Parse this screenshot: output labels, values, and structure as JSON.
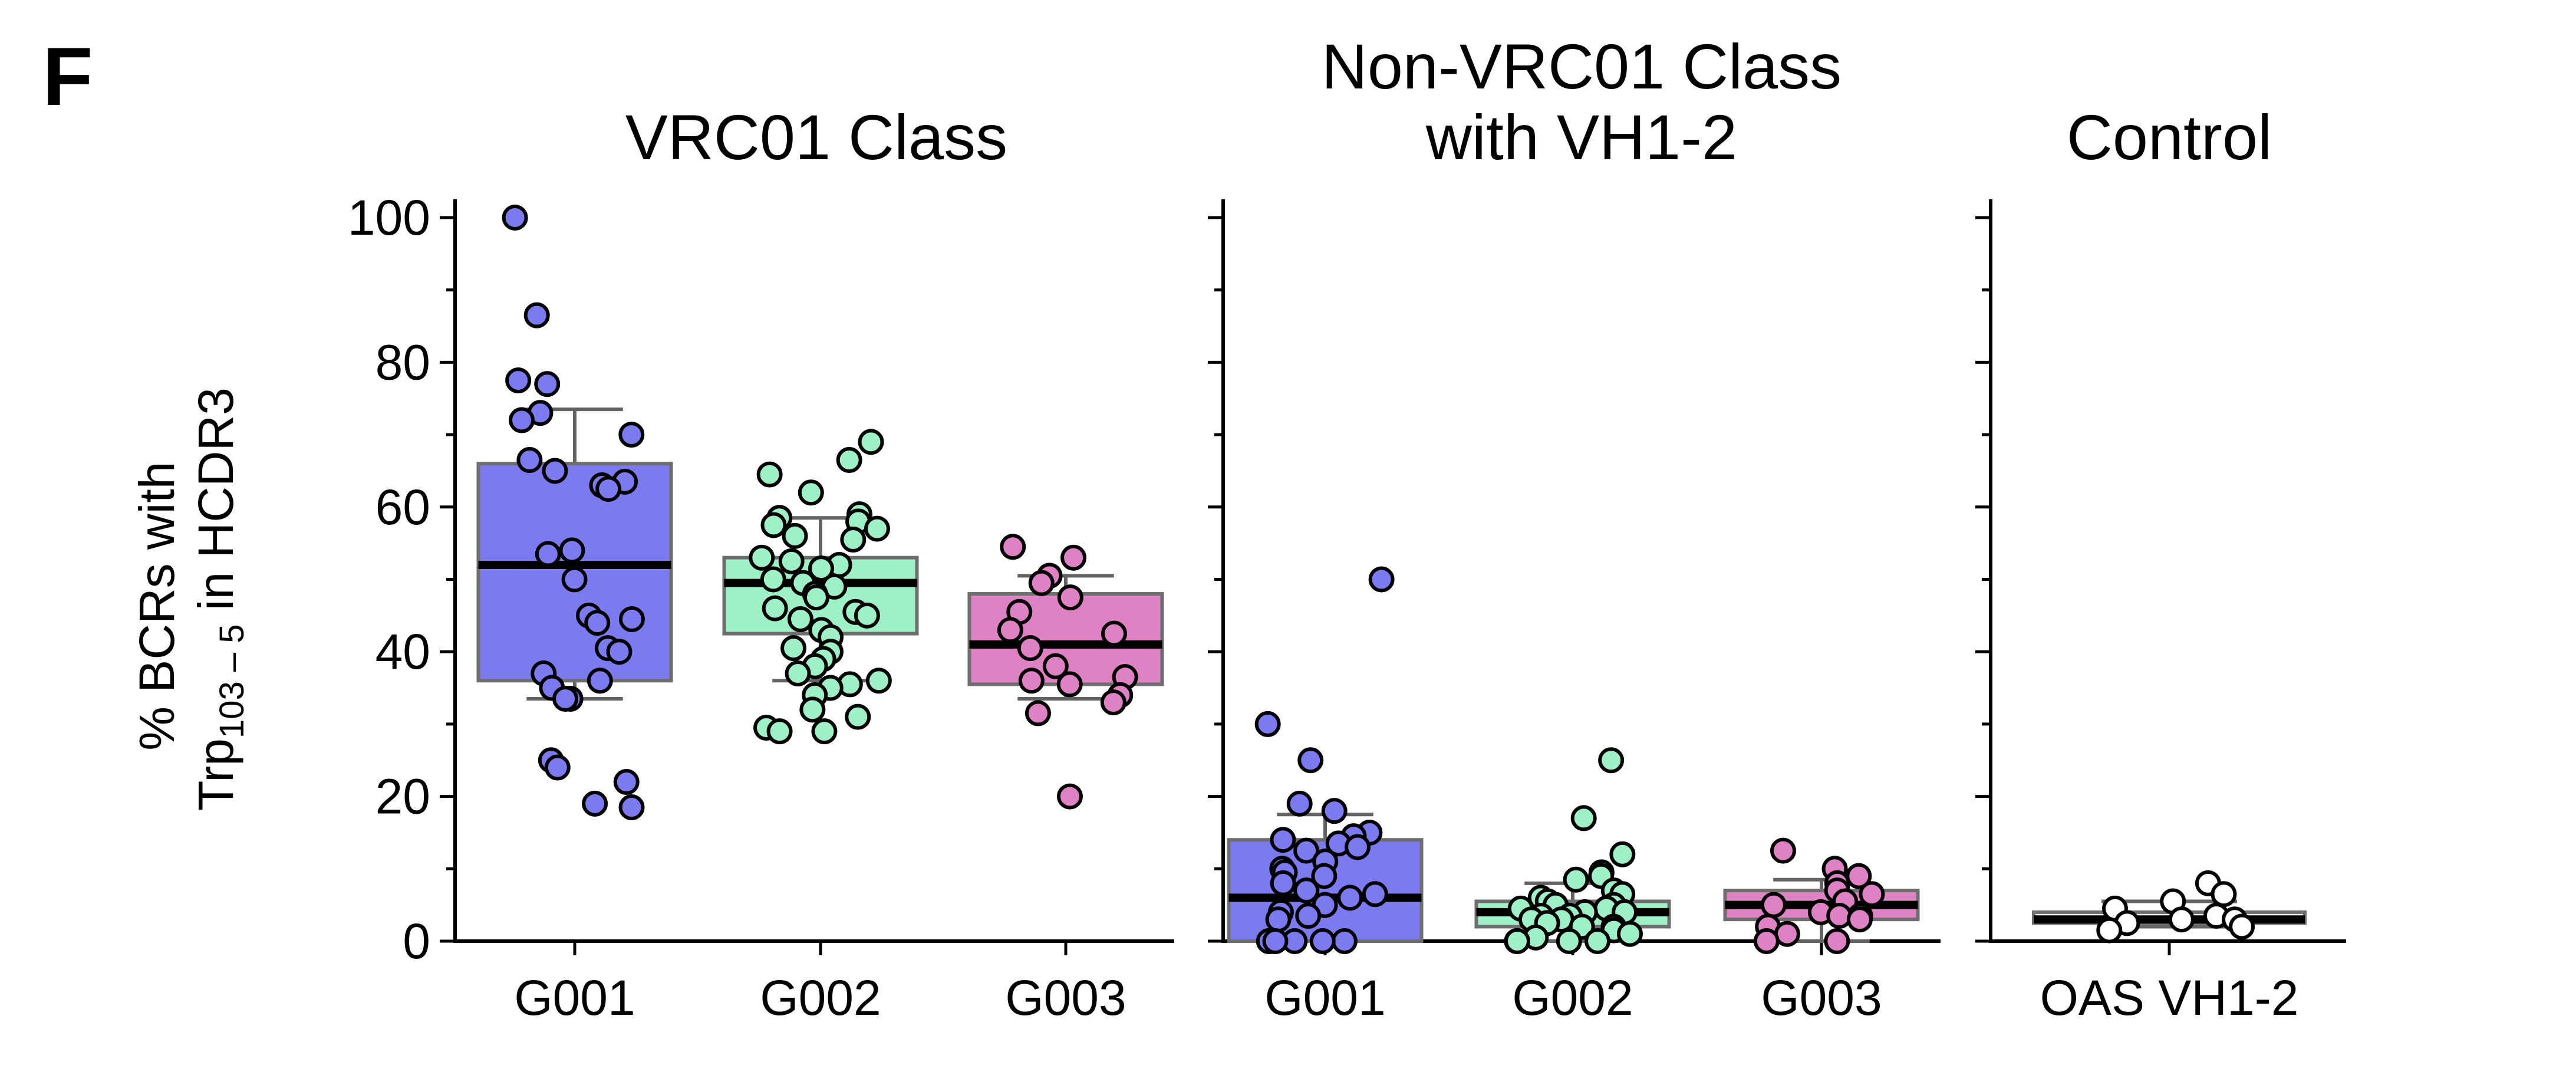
{
  "panel_label": "F",
  "y_label_line1": "% BCRs with",
  "y_label_line2_main": "Trp",
  "y_label_line2_sub": "103 – 5",
  "y_label_line2_rest": " in HCDR3",
  "chart_data": [
    {
      "type": "box",
      "title_lines": [
        "VRC01 Class"
      ],
      "categories": [
        "G001",
        "G002",
        "G003"
      ],
      "ylim": [
        0,
        100
      ],
      "yticks": [
        0,
        20,
        40,
        60,
        80,
        100
      ],
      "boxes": [
        {
          "category": "G001",
          "q1": 36,
          "median": 52,
          "q3": 66,
          "whisker_low": 33.5,
          "whisker_high": 73.5,
          "color": "#7b7bef",
          "points": [
            100,
            86.5,
            77.5,
            77,
            73,
            72,
            70,
            66.5,
            65,
            63.5,
            63,
            62.5,
            54,
            53.5,
            50,
            45,
            44.5,
            44,
            40.5,
            40,
            37,
            36,
            35,
            33.5,
            33.5,
            25,
            24,
            22,
            19,
            18.5
          ]
        },
        {
          "category": "G002",
          "q1": 42.5,
          "median": 49.5,
          "q3": 53,
          "whisker_low": 36,
          "whisker_high": 58.5,
          "color": "#9ef0c6",
          "points": [
            69,
            66.5,
            64.5,
            62,
            59,
            58.5,
            58,
            57.5,
            57,
            56,
            55.5,
            53,
            52.5,
            52,
            51.5,
            50,
            49.5,
            49,
            48,
            47.5,
            46,
            45.5,
            45,
            44.5,
            43,
            42,
            40.5,
            40,
            39,
            38,
            37,
            36,
            35.5,
            35,
            34,
            32,
            31,
            29.5,
            29,
            29
          ]
        },
        {
          "category": "G003",
          "q1": 35.5,
          "median": 41,
          "q3": 48,
          "whisker_low": 33.5,
          "whisker_high": 50.5,
          "color": "#de82c4",
          "points": [
            54.5,
            53,
            50.5,
            49.5,
            47.5,
            45.5,
            43,
            42.5,
            40.5,
            38,
            36.5,
            36,
            35.5,
            34,
            33,
            31.5,
            20
          ]
        }
      ]
    },
    {
      "type": "box",
      "title_lines": [
        "Non-VRC01 Class",
        "with VH1-2"
      ],
      "categories": [
        "G001",
        "G002",
        "G003"
      ],
      "ylim": [
        0,
        100
      ],
      "yticks": [
        0,
        20,
        40,
        60,
        80,
        100
      ],
      "boxes": [
        {
          "category": "G001",
          "q1": 0,
          "median": 6,
          "q3": 14,
          "whisker_low": 0,
          "whisker_high": 17.5,
          "color": "#7b7bef",
          "points": [
            50,
            30,
            25,
            19,
            18,
            15,
            14.5,
            14,
            13.5,
            13,
            12.5,
            11,
            10,
            9.5,
            9,
            8,
            7,
            6.5,
            6,
            5,
            4,
            3.5,
            3,
            0,
            0,
            0,
            0,
            0,
            0
          ]
        },
        {
          "category": "G002",
          "q1": 2,
          "median": 4,
          "q3": 5.5,
          "whisker_low": 0,
          "whisker_high": 8,
          "color": "#9ef0c6",
          "points": [
            25,
            17,
            12,
            9.5,
            9,
            8.5,
            7,
            6.5,
            6,
            5.5,
            5,
            5,
            4.5,
            4.5,
            4,
            4,
            3.5,
            3.5,
            3,
            3,
            2.5,
            2,
            2,
            1.5,
            1,
            0.5,
            0,
            0,
            0,
            0
          ]
        },
        {
          "category": "G003",
          "q1": 3,
          "median": 5,
          "q3": 7,
          "whisker_low": 0,
          "whisker_high": 8.5,
          "color": "#de82c4",
          "points": [
            12.5,
            10,
            9,
            8,
            7,
            6.5,
            5.5,
            5,
            4,
            3.5,
            3.5,
            3,
            2,
            1,
            0,
            0
          ]
        }
      ]
    },
    {
      "type": "box",
      "title_lines": [
        "Control"
      ],
      "categories": [
        "OAS VH1-2"
      ],
      "ylim": [
        0,
        100
      ],
      "yticks": [
        0,
        20,
        40,
        60,
        80,
        100
      ],
      "boxes": [
        {
          "category": "OAS VH1-2",
          "q1": 2.5,
          "median": 3,
          "q3": 4,
          "whisker_low": 2,
          "whisker_high": 5.5,
          "color": "#ffffff",
          "points": [
            8,
            6.5,
            5.5,
            4.5,
            3.5,
            3,
            3,
            2.5,
            2,
            1.5
          ]
        }
      ]
    }
  ]
}
